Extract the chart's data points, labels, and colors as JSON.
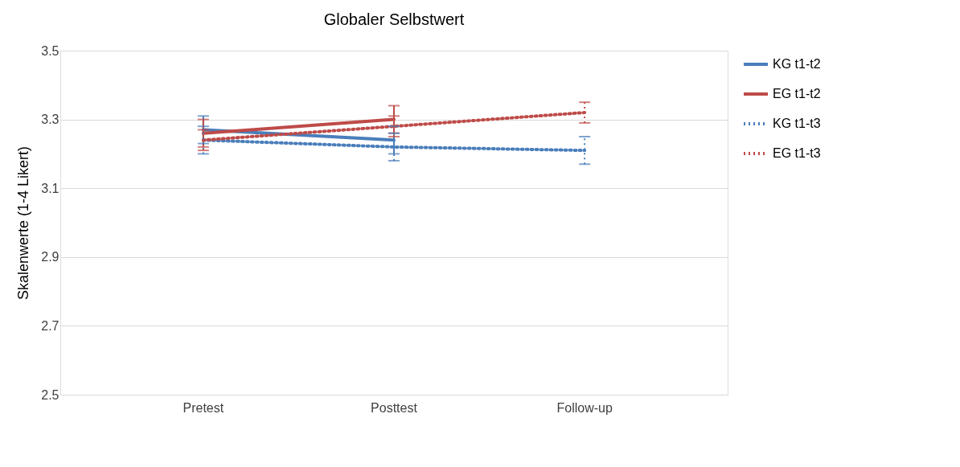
{
  "chart_data": {
    "type": "line",
    "title": "Globaler Selbstwert",
    "ylabel": "Skalenwerte (1-4 Likert)",
    "categories": [
      "Pretest",
      "Posttest",
      "Follow-up"
    ],
    "ylim": [
      2.5,
      3.5
    ],
    "yticks": [
      2.5,
      2.7,
      2.9,
      3.1,
      3.3,
      3.5
    ],
    "grid": "y",
    "legend": "right",
    "marker": "none",
    "series": [
      {
        "name": "KG t1-t2",
        "color": "#4a7ebb",
        "line_style": "solid",
        "values": [
          3.27,
          3.24,
          null
        ],
        "errors": [
          0.04,
          0.04,
          null
        ]
      },
      {
        "name": "EG t1-t2",
        "color": "#be4b48",
        "line_style": "solid",
        "values": [
          3.26,
          3.3,
          null
        ],
        "errors": [
          0.04,
          0.04,
          null
        ]
      },
      {
        "name": "KG t1-t3",
        "color": "#4a7ebb",
        "line_style": "dotted",
        "values": [
          3.24,
          3.22,
          3.21
        ],
        "errors": [
          0.04,
          0.04,
          0.04
        ]
      },
      {
        "name": "EG t1-t3",
        "color": "#be4b48",
        "line_style": "dotted",
        "values": [
          3.24,
          3.28,
          3.32
        ],
        "errors": [
          0.03,
          0.03,
          0.03
        ]
      }
    ]
  }
}
